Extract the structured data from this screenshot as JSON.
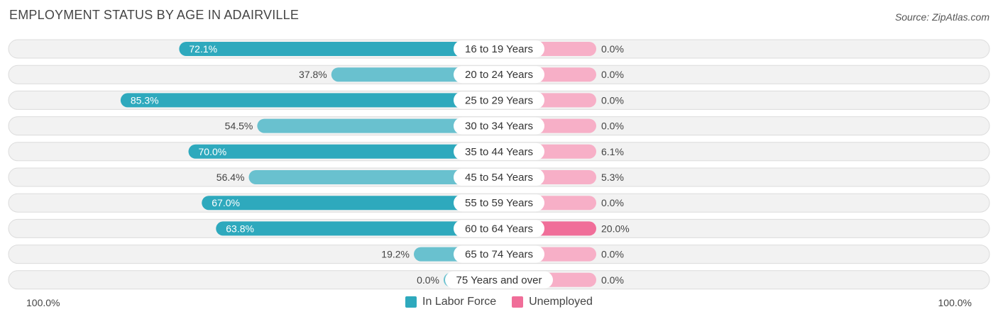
{
  "chart_data": {
    "type": "bar",
    "title": "EMPLOYMENT STATUS BY AGE IN ADAIRVILLE",
    "source": "Source: ZipAtlas.com",
    "categories": [
      "16 to 19 Years",
      "20 to 24 Years",
      "25 to 29 Years",
      "30 to 34 Years",
      "35 to 44 Years",
      "45 to 54 Years",
      "55 to 59 Years",
      "60 to 64 Years",
      "65 to 74 Years",
      "75 Years and over"
    ],
    "series": [
      {
        "name": "In Labor Force",
        "color": "#2ea9bd",
        "values": [
          72.1,
          37.8,
          85.3,
          54.5,
          70.0,
          56.4,
          67.0,
          63.8,
          19.2,
          0.0
        ],
        "labels": [
          "72.1%",
          "37.8%",
          "85.3%",
          "54.5%",
          "70.0%",
          "56.4%",
          "67.0%",
          "63.8%",
          "19.2%",
          "0.0%"
        ]
      },
      {
        "name": "Unemployed",
        "color": "#f06e99",
        "values": [
          0.0,
          0.0,
          0.0,
          0.0,
          6.1,
          5.3,
          0.0,
          20.0,
          0.0,
          0.0
        ],
        "labels": [
          "0.0%",
          "0.0%",
          "0.0%",
          "0.0%",
          "6.1%",
          "5.3%",
          "0.0%",
          "20.0%",
          "0.0%",
          "0.0%"
        ]
      }
    ],
    "axis_left_label": "100.0%",
    "axis_right_label": "100.0%",
    "xlim": [
      -100,
      100
    ],
    "legend_position": "bottom-center",
    "grid": false
  }
}
